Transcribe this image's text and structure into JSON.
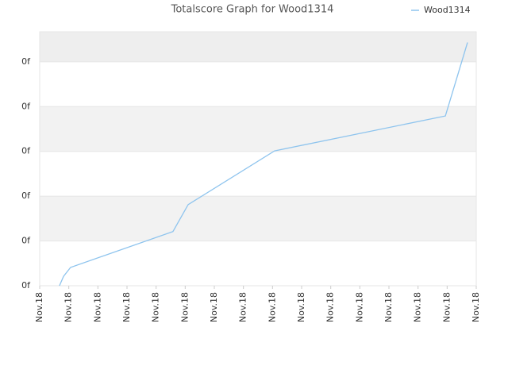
{
  "chart_data": {
    "type": "line",
    "title": "Totalscore Graph for Wood1314",
    "series": [
      {
        "name": "Wood1314",
        "color": "#8ec4ee",
        "x": [
          0.68,
          0.82,
          1.06,
          4.58,
          5.1,
          8.07,
          13.94,
          14.7
        ],
        "values": [
          0,
          0.21,
          0.41,
          1.21,
          1.81,
          3.01,
          3.79,
          5.43
        ]
      }
    ],
    "xlim": [
      0,
      15
    ],
    "xticks": [
      {
        "value": 0,
        "label": "Nov.18"
      },
      {
        "value": 1,
        "label": "Nov.18"
      },
      {
        "value": 2,
        "label": "Nov.18"
      },
      {
        "value": 3,
        "label": "Nov.18"
      },
      {
        "value": 4,
        "label": "Nov.18"
      },
      {
        "value": 5,
        "label": "Nov.18"
      },
      {
        "value": 6,
        "label": "Nov.18"
      },
      {
        "value": 7,
        "label": "Nov.18"
      },
      {
        "value": 8,
        "label": "Nov.18"
      },
      {
        "value": 9,
        "label": "Nov.18"
      },
      {
        "value": 10,
        "label": "Nov.18"
      },
      {
        "value": 11,
        "label": "Nov.18"
      },
      {
        "value": 12,
        "label": "Nov.18"
      },
      {
        "value": 13,
        "label": "Nov.18"
      },
      {
        "value": 14,
        "label": "Nov.18"
      },
      {
        "value": 15,
        "label": "Nov.18"
      }
    ],
    "ylim": [
      0,
      5.67
    ],
    "yticks": [
      {
        "value": 0,
        "label": "0f"
      },
      {
        "value": 1,
        "label": "0f"
      },
      {
        "value": 2,
        "label": "0f"
      },
      {
        "value": 3,
        "label": "0f"
      },
      {
        "value": 4,
        "label": "0f"
      },
      {
        "value": 5,
        "label": "0f"
      }
    ],
    "grid": true,
    "legend": "top-right"
  }
}
